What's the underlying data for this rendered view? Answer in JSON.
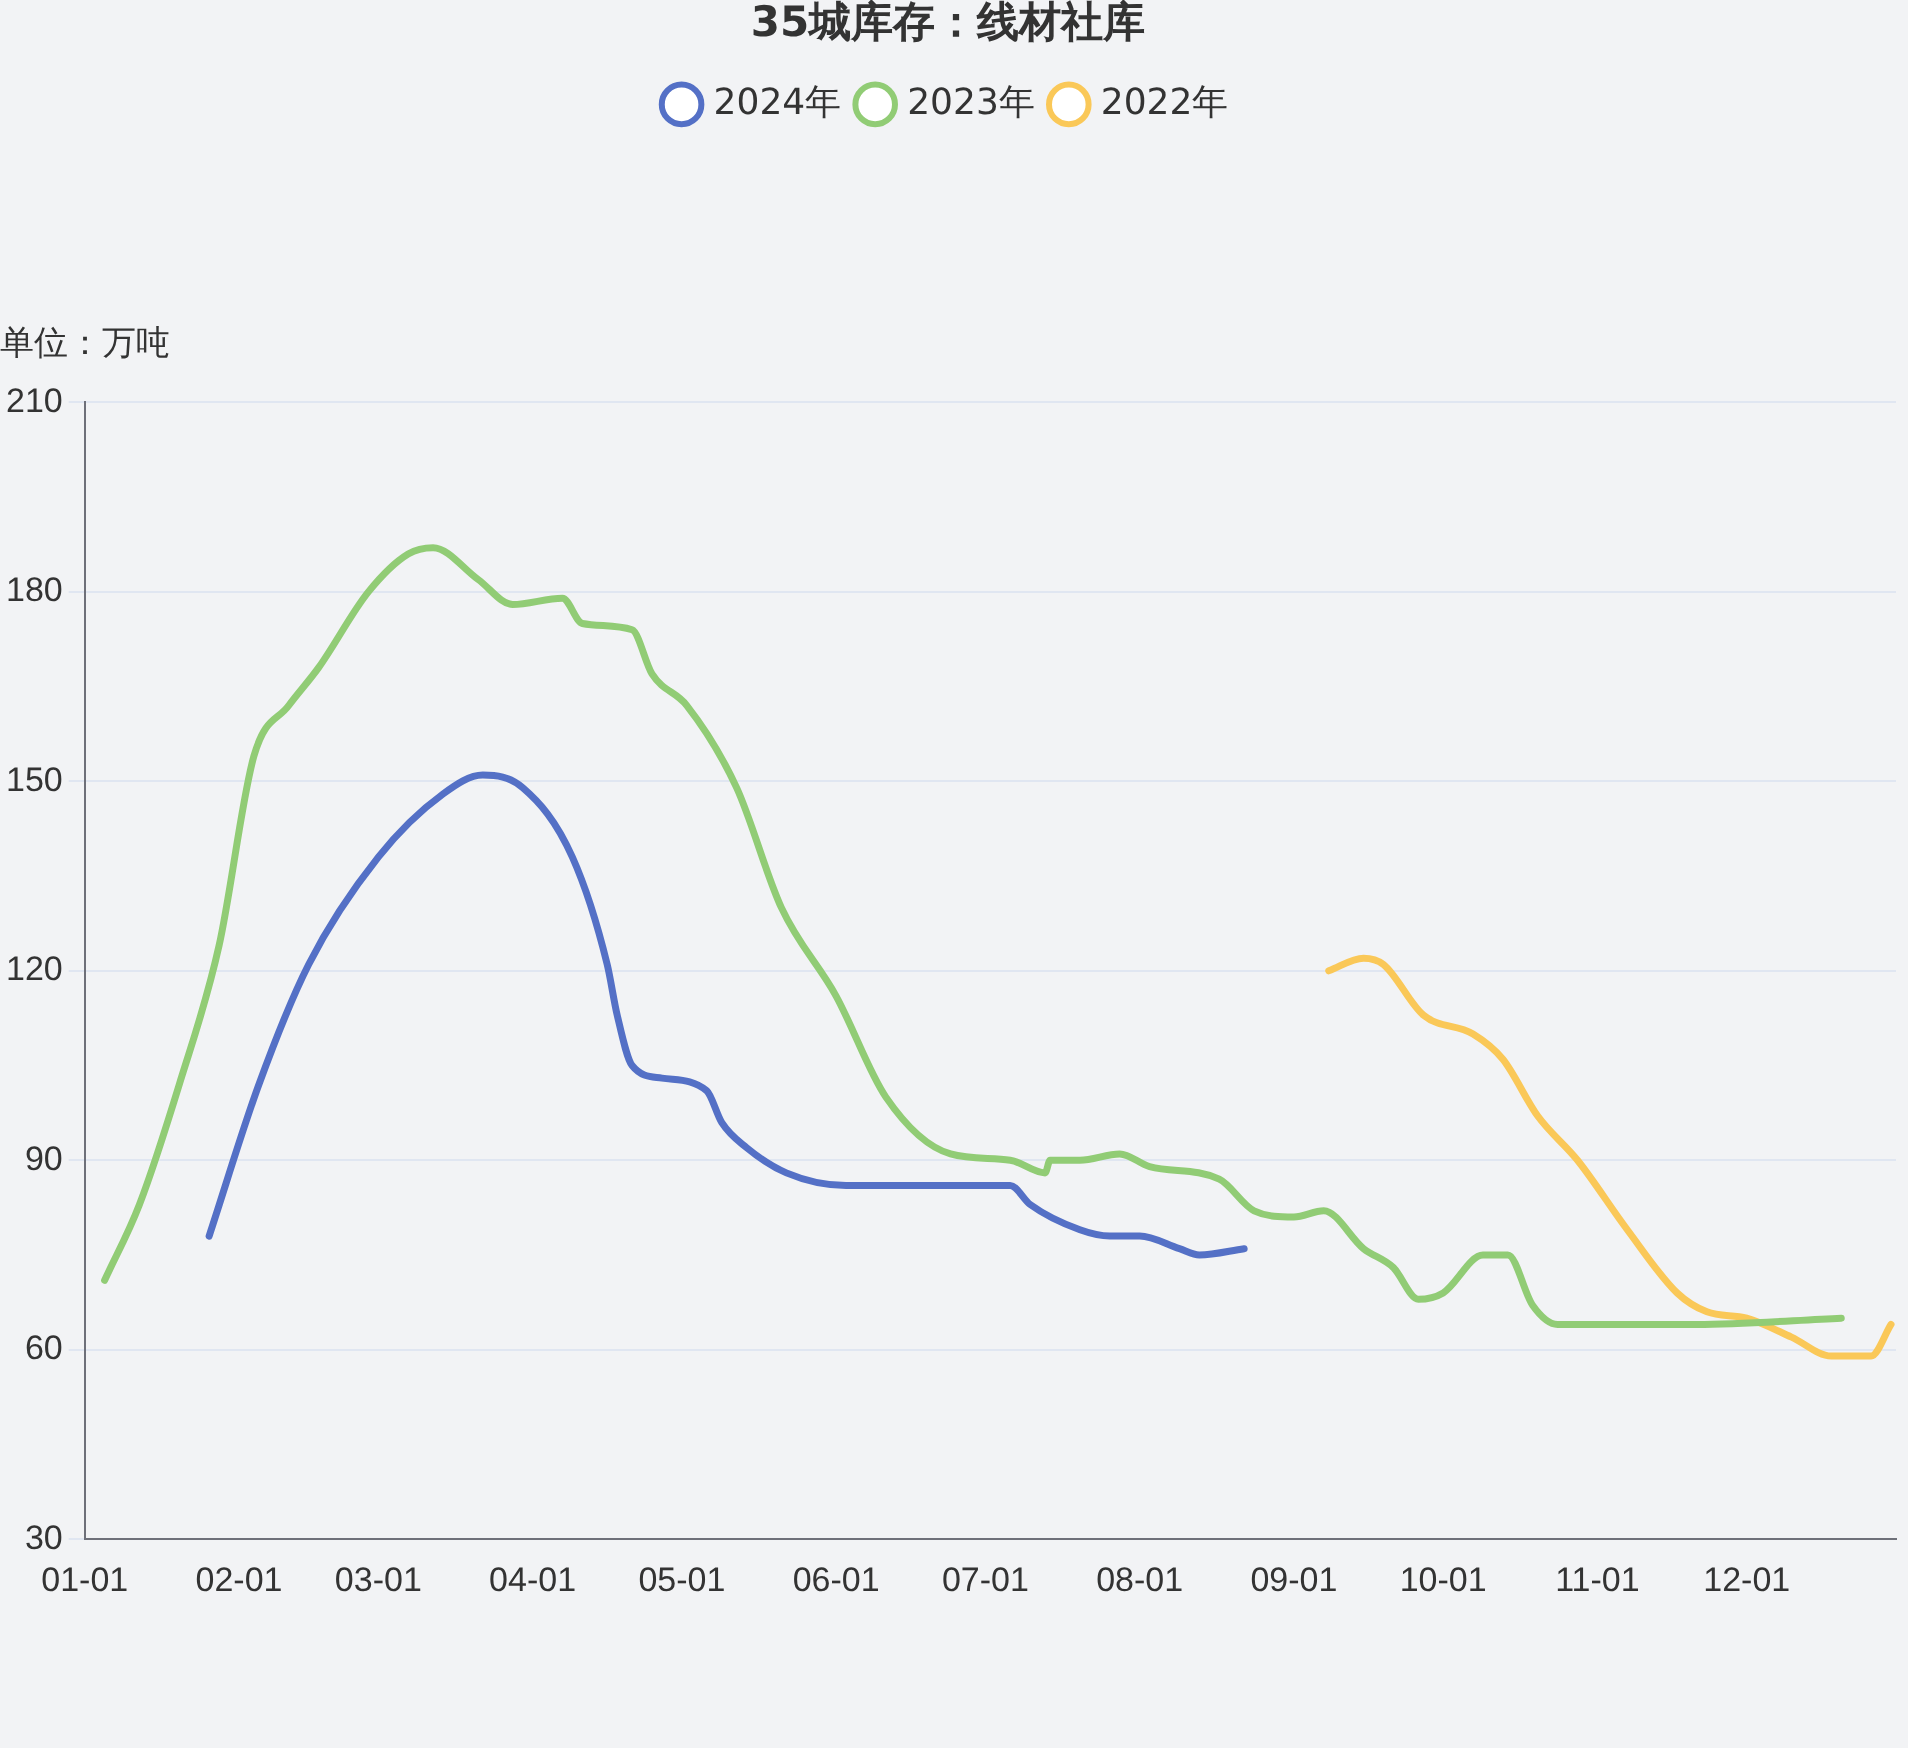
{
  "chart_data": {
    "type": "line",
    "title": "35城库存：线材社库",
    "ylabel": "单位：万吨",
    "xlim": [
      "--01-01",
      "--12-31"
    ],
    "xticks": [
      {
        "value": "--01-01",
        "label": "01-01"
      },
      {
        "value": "--02-01",
        "label": "02-01"
      },
      {
        "value": "--03-01",
        "label": "03-01"
      },
      {
        "value": "--04-01",
        "label": "04-01"
      },
      {
        "value": "--05-01",
        "label": "05-01"
      },
      {
        "value": "--06-01",
        "label": "06-01"
      },
      {
        "value": "--07-01",
        "label": "07-01"
      },
      {
        "value": "--08-01",
        "label": "08-01"
      },
      {
        "value": "--09-01",
        "label": "09-01"
      },
      {
        "value": "--10-01",
        "label": "10-01"
      },
      {
        "value": "--11-01",
        "label": "11-01"
      },
      {
        "value": "--12-01",
        "label": "12-01"
      }
    ],
    "ylim": [
      30,
      210
    ],
    "yticks": [
      30,
      60,
      90,
      120,
      150,
      180,
      210
    ],
    "grid": "y",
    "legend": "top",
    "marker": "none",
    "line_style": "solid",
    "series": [
      {
        "name": "2024年",
        "color": "#5470c6",
        "x": [
          "--01-26",
          "--02-05",
          "--02-15",
          "--03-01",
          "--03-14",
          "--03-22",
          "--03-30",
          "--04-09",
          "--04-16",
          "--04-18",
          "--04-21",
          "--04-27",
          "--05-06",
          "--05-09",
          "--05-14",
          "--05-22",
          "--06-03",
          "--06-15",
          "--07-06",
          "--07-10",
          "--07-20",
          "--07-26",
          "--08-01",
          "--08-09",
          "--08-13",
          "--08-22"
        ],
        "values": [
          78,
          102,
          121,
          138,
          148,
          151,
          149,
          138,
          121,
          113,
          105,
          103,
          101,
          96,
          92,
          88,
          86,
          86,
          86,
          83,
          79,
          78,
          78,
          76,
          75,
          76
        ]
      },
      {
        "name": "2023年",
        "color": "#91cc75",
        "x": [
          "--01-05",
          "--01-12",
          "--01-20",
          "--01-28",
          "--02-04",
          "--02-11",
          "--02-17",
          "--02-27",
          "--03-07",
          "--03-12",
          "--03-21",
          "--03-28",
          "--04-07",
          "--04-11",
          "--04-21",
          "--04-25",
          "--05-02",
          "--05-12",
          "--05-21",
          "--06-01",
          "--06-11",
          "--06-24",
          "--07-06",
          "--07-13",
          "--07-14",
          "--07-20",
          "--07-28",
          "--08-03",
          "--08-17",
          "--08-24",
          "--09-01",
          "--09-07",
          "--09-15",
          "--09-21",
          "--09-26",
          "--10-01",
          "--10-09",
          "--10-14",
          "--10-19",
          "--10-24",
          "--11-21",
          "--12-20"
        ],
        "values": [
          71,
          83,
          102,
          124,
          154,
          162,
          168,
          180,
          186,
          187,
          182,
          178,
          179,
          175,
          174,
          167,
          162,
          149,
          130,
          116,
          100,
          91,
          90,
          88,
          90,
          90,
          91,
          89,
          87,
          82,
          81,
          82,
          76,
          73,
          68,
          69,
          75,
          75,
          67,
          64,
          64,
          65
        ]
      },
      {
        "name": "2022年",
        "color": "#fac858",
        "x": [
          "--09-08",
          "--09-15",
          "--09-19",
          "--09-27",
          "--10-07",
          "--10-13",
          "--10-20",
          "--10-28",
          "--11-07",
          "--11-17",
          "--11-23",
          "--12-01",
          "--12-10",
          "--12-18",
          "--12-26",
          "--12-30"
        ],
        "values": [
          120,
          122,
          121,
          113,
          110,
          106,
          97,
          90,
          79,
          69,
          66,
          65,
          62,
          59,
          59,
          64
        ]
      }
    ]
  }
}
